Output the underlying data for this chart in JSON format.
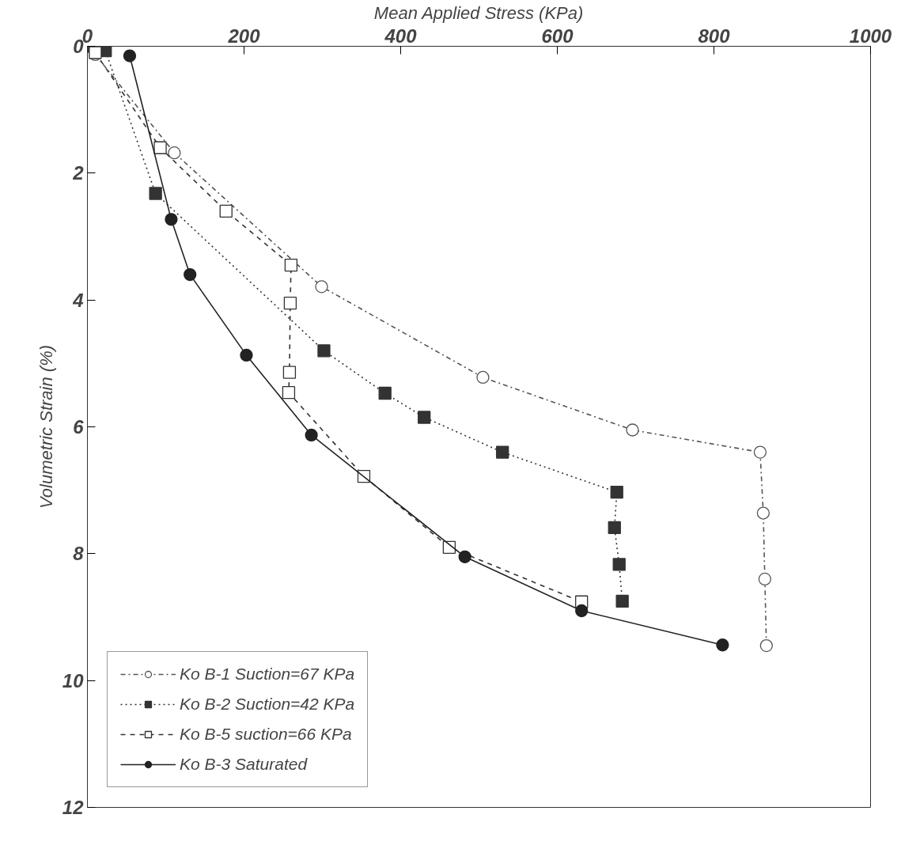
{
  "chart_data": {
    "type": "line",
    "xlabel": "Mean Applied Stress (KPa)",
    "ylabel": "Volumetric Strain (%)",
    "xlim": [
      0,
      1000
    ],
    "xticks": [
      0,
      200,
      400,
      600,
      800,
      1000
    ],
    "ylim": [
      12,
      0
    ],
    "yticks": [
      0,
      2,
      4,
      6,
      8,
      10,
      12
    ],
    "grid": false,
    "legend": "bottom left",
    "series": [
      {
        "name": "Ko B-1 Suction=67 KPa",
        "color": "#555555",
        "line_style": "dashdot",
        "marker": "circle",
        "x": [
          10,
          111,
          299,
          505,
          696,
          859,
          863,
          865,
          867
        ],
        "values": [
          0.13,
          1.68,
          3.79,
          5.22,
          6.05,
          6.4,
          7.36,
          8.4,
          9.45
        ]
      },
      {
        "name": "Ko B-2 Suction=42 KPa",
        "color": "#333333",
        "line_style": "dotted",
        "marker": "square",
        "x": [
          0,
          23,
          87,
          302,
          380,
          430,
          530,
          676,
          673,
          679,
          683
        ],
        "values": [
          0,
          0.07,
          2.32,
          4.8,
          5.47,
          5.85,
          6.4,
          7.03,
          7.59,
          8.17,
          8.75
        ]
      },
      {
        "name": "Ko B-5 suction=66 KPa",
        "color": "#333333",
        "line_style": "dashed",
        "marker": "square",
        "x": [
          10,
          93,
          177,
          260,
          259,
          258,
          257,
          353,
          462,
          631
        ],
        "values": [
          0.1,
          1.6,
          2.6,
          3.45,
          4.05,
          5.14,
          5.46,
          6.78,
          7.9,
          8.76
        ]
      },
      {
        "name": "Ko B-3 Saturated",
        "color": "#222222",
        "line_style": "solid",
        "marker": "circle",
        "x": [
          54,
          107,
          131,
          203,
          286,
          482,
          631,
          811
        ],
        "values": [
          0.15,
          2.73,
          3.6,
          4.87,
          6.13,
          8.05,
          8.9,
          9.44
        ]
      }
    ]
  }
}
